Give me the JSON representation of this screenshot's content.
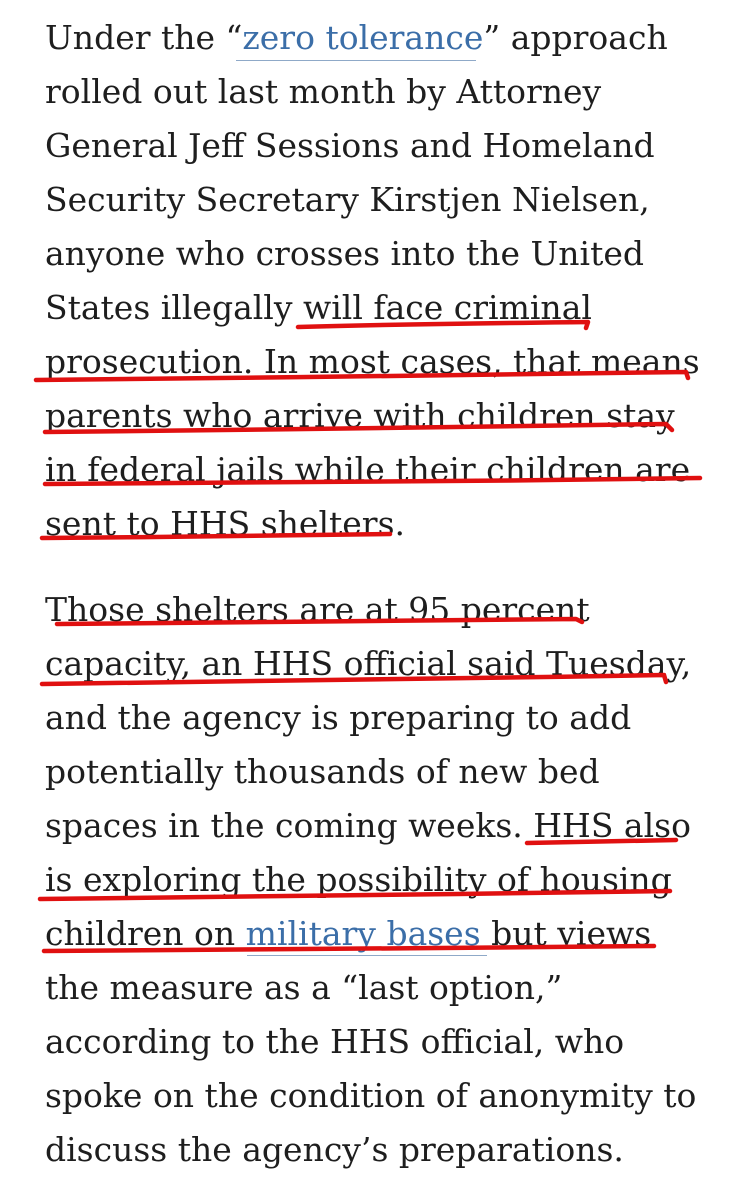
{
  "article": {
    "paragraph_1": {
      "l1_pre": "Under the “",
      "l1_link": "zero tolerance",
      "l1_post": "” approach",
      "l2": "rolled out last month by Attorney",
      "l3": "General Jeff Sessions and Homeland",
      "l4": "Security Secretary Kirstjen Nielsen,",
      "l5": "anyone who crosses into the United",
      "l6": "States illegally will face criminal",
      "l7": "prosecution. In most cases, that means",
      "l8": "parents who arrive with children stay",
      "l9": "in federal jails while their children are",
      "l10": "sent to HHS shelters."
    },
    "paragraph_2": {
      "l1": "Those shelters are at 95 percent",
      "l2": "capacity, an HHS official said Tuesday,",
      "l3": "and the agency is preparing to add",
      "l4": "potentially thousands of new bed",
      "l5": "spaces in the coming weeks. HHS also",
      "l6": "is exploring the possibility of housing",
      "l7_pre": "children on ",
      "l7_link": "military bases",
      "l7_post": " but views",
      "l8": "the measure as a “last option,”",
      "l9": "according to the HHS official, who",
      "l10": "spoke on the condition of anonymity to",
      "l11": "discuss the agency’s preparations."
    }
  },
  "colors": {
    "text": "#1e1e1e",
    "link": "#3b6ea8",
    "highlight_underline": "#e01010"
  }
}
